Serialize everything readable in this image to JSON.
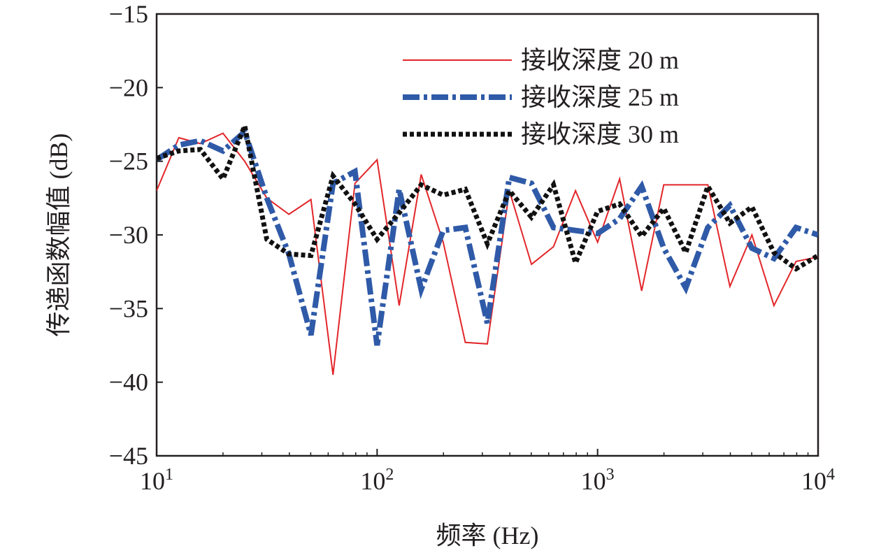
{
  "chart_data": {
    "type": "line",
    "xlabel": "频率 (Hz)",
    "ylabel": "传递函数幅值 (dB)",
    "xscale": "log",
    "xlim": [
      10,
      10000
    ],
    "ylim": [
      -45,
      -15
    ],
    "yticks": [
      -15,
      -20,
      -25,
      -30,
      -35,
      -40,
      -45
    ],
    "ytick_labels": [
      "−15",
      "−20",
      "−25",
      "−30",
      "−35",
      "−40",
      "−45"
    ],
    "xticks": [
      {
        "value": 10,
        "base": "10",
        "exp": "1"
      },
      {
        "value": 100,
        "base": "10",
        "exp": "2"
      },
      {
        "value": 1000,
        "base": "10",
        "exp": "3"
      },
      {
        "value": 10000,
        "base": "10",
        "exp": "4"
      }
    ],
    "grid": false,
    "legend_position": "top-right",
    "series": [
      {
        "name": "接收深度 20 m",
        "color": "#e2262a",
        "style": "solid",
        "points": [
          [
            10,
            -27
          ],
          [
            12.6,
            -23.4
          ],
          [
            15.8,
            -23.8
          ],
          [
            20,
            -23.1
          ],
          [
            25.1,
            -25
          ],
          [
            31.6,
            -27.5
          ],
          [
            39.8,
            -28.6
          ],
          [
            50.1,
            -27.6
          ],
          [
            63.1,
            -39.5
          ],
          [
            79.4,
            -26.5
          ],
          [
            100,
            -24.9
          ],
          [
            125.9,
            -34.8
          ],
          [
            158.5,
            -25.9
          ],
          [
            199.5,
            -30.5
          ],
          [
            251.2,
            -37.3
          ],
          [
            316.2,
            -37.4
          ],
          [
            398.1,
            -27
          ],
          [
            501.2,
            -32
          ],
          [
            631,
            -30.8
          ],
          [
            794.3,
            -27
          ],
          [
            1000,
            -30.5
          ],
          [
            1258.9,
            -26.2
          ],
          [
            1584.9,
            -33.8
          ],
          [
            1995.3,
            -26.6
          ],
          [
            2511.9,
            -26.6
          ],
          [
            3162.3,
            -26.6
          ],
          [
            3981.1,
            -33.5
          ],
          [
            5011.9,
            -30
          ],
          [
            6309.6,
            -34.8
          ],
          [
            7943.3,
            -31.8
          ],
          [
            10000,
            -31.5
          ]
        ]
      },
      {
        "name": "接收深度 25 m",
        "color": "#2f5aa8",
        "style": "dashdot",
        "points": [
          [
            10,
            -24.9
          ],
          [
            12.6,
            -23.9
          ],
          [
            15.8,
            -23.6
          ],
          [
            20,
            -24.3
          ],
          [
            25.1,
            -23
          ],
          [
            31.6,
            -27.5
          ],
          [
            39.8,
            -31.3
          ],
          [
            50.1,
            -36.8
          ],
          [
            63.1,
            -26.5
          ],
          [
            79.4,
            -25.7
          ],
          [
            100,
            -37.5
          ],
          [
            125.9,
            -26.9
          ],
          [
            158.5,
            -33.7
          ],
          [
            199.5,
            -29.7
          ],
          [
            251.2,
            -29.5
          ],
          [
            316.2,
            -36
          ],
          [
            398.1,
            -26.1
          ],
          [
            501.2,
            -26.5
          ],
          [
            631,
            -29.5
          ],
          [
            794.3,
            -29.7
          ],
          [
            1000,
            -29.9
          ],
          [
            1258.9,
            -28.9
          ],
          [
            1584.9,
            -26.7
          ],
          [
            1995.3,
            -30.9
          ],
          [
            2511.9,
            -33.6
          ],
          [
            3162.3,
            -29.5
          ],
          [
            3981.1,
            -28
          ],
          [
            5011.9,
            -30.9
          ],
          [
            6309.6,
            -31.6
          ],
          [
            7943.3,
            -29.5
          ],
          [
            10000,
            -30
          ]
        ]
      },
      {
        "name": "接收深度 30 m",
        "color": "#111111",
        "style": "dotted",
        "points": [
          [
            10,
            -24.8
          ],
          [
            12.6,
            -24.3
          ],
          [
            15.8,
            -24.2
          ],
          [
            20,
            -26.2
          ],
          [
            25.1,
            -22.6
          ],
          [
            31.6,
            -30.3
          ],
          [
            39.8,
            -31.3
          ],
          [
            50.1,
            -31.4
          ],
          [
            63.1,
            -26
          ],
          [
            79.4,
            -27.9
          ],
          [
            100,
            -30.3
          ],
          [
            125.9,
            -28.5
          ],
          [
            158.5,
            -26.6
          ],
          [
            199.5,
            -27.3
          ],
          [
            251.2,
            -26.9
          ],
          [
            316.2,
            -30.6
          ],
          [
            398.1,
            -27
          ],
          [
            501.2,
            -28.8
          ],
          [
            631,
            -26.6
          ],
          [
            794.3,
            -31.9
          ],
          [
            1000,
            -28.4
          ],
          [
            1258.9,
            -27.9
          ],
          [
            1584.9,
            -30.1
          ],
          [
            1995.3,
            -28.2
          ],
          [
            2511.9,
            -31.2
          ],
          [
            3162.3,
            -26.7
          ],
          [
            3981.1,
            -29.2
          ],
          [
            5011.9,
            -28.1
          ],
          [
            6309.6,
            -31.2
          ],
          [
            7943.3,
            -32.3
          ],
          [
            10000,
            -31.4
          ]
        ]
      }
    ]
  }
}
